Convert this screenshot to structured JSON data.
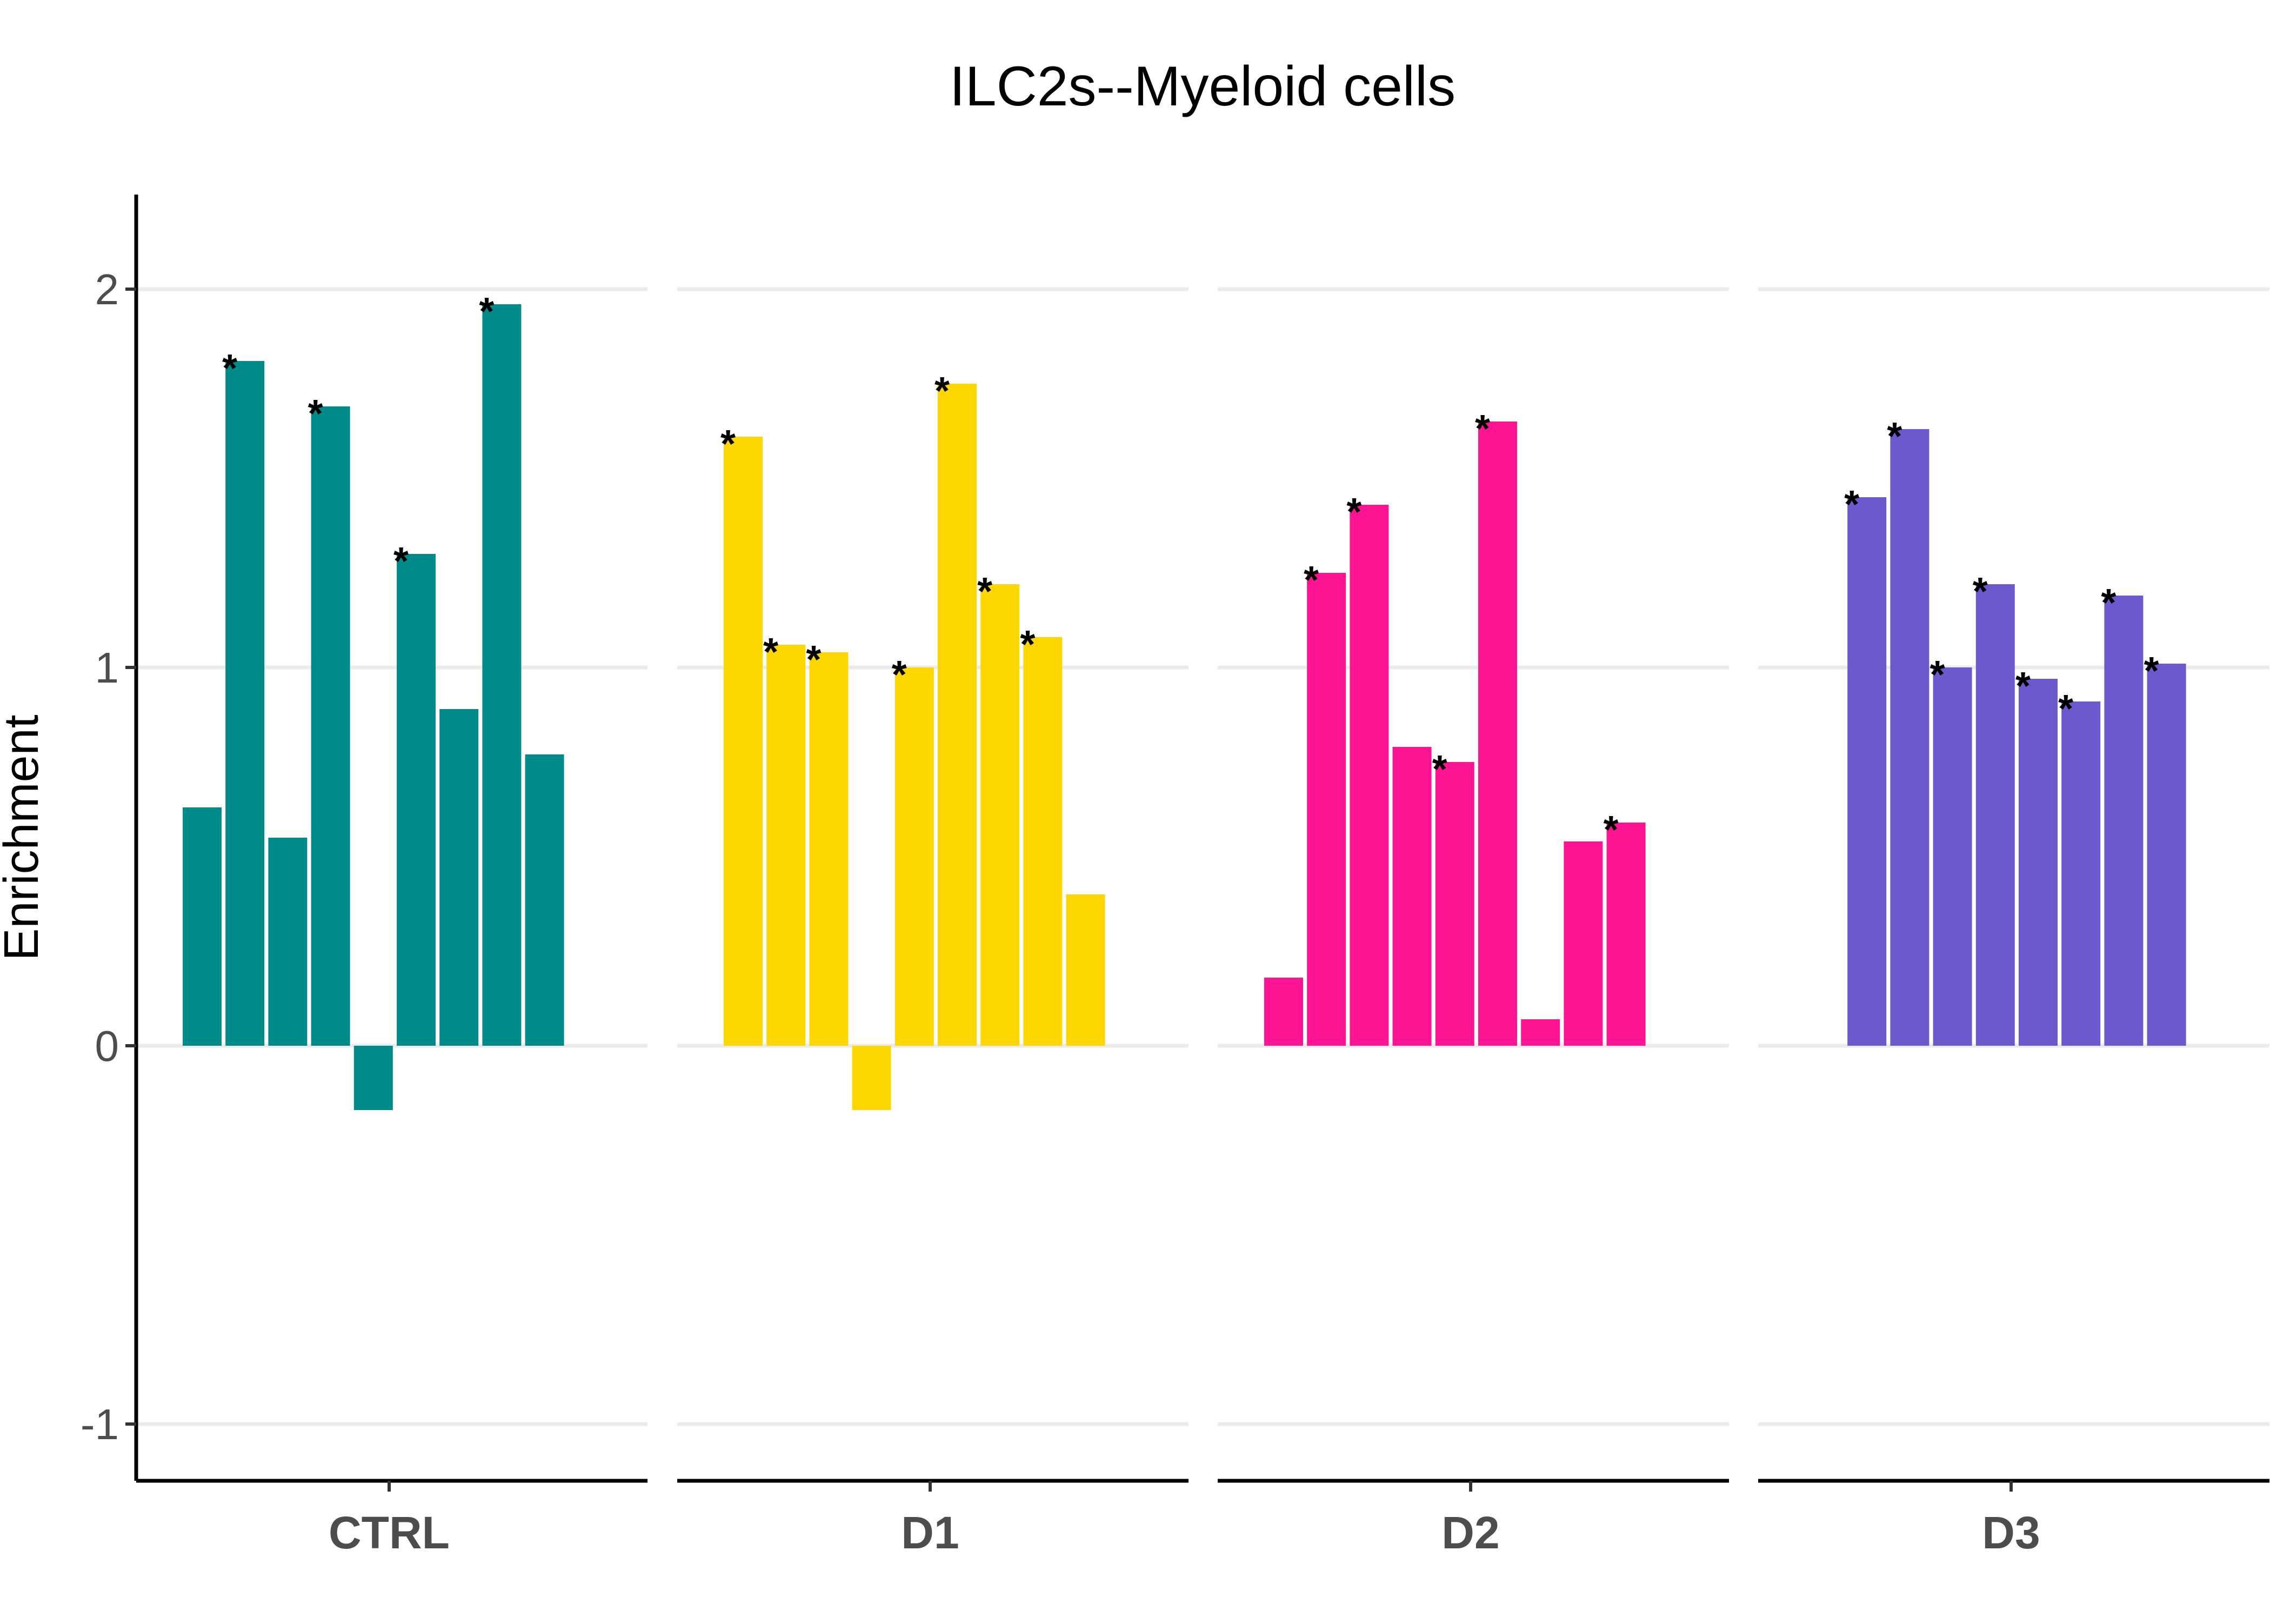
{
  "chart_data": {
    "type": "bar",
    "title": "ILC2s--Myeloid cells",
    "xlabel": "",
    "ylabel": "Enrichment",
    "ylim": [
      -1.15,
      2.25
    ],
    "yticks": [
      -1,
      0,
      1,
      2
    ],
    "grid": "horizontal major lines",
    "significance_marker": "*",
    "facets": [
      {
        "label": "CTRL",
        "color": "#008b8b",
        "values": [
          0.63,
          1.81,
          0.55,
          1.69,
          -0.17,
          1.3,
          0.89,
          1.96,
          0.77
        ],
        "significant": [
          false,
          true,
          false,
          true,
          false,
          true,
          false,
          true,
          false
        ]
      },
      {
        "label": "D1",
        "color": "#ffd700",
        "values": [
          1.61,
          1.06,
          1.04,
          -0.17,
          1.0,
          1.75,
          1.22,
          1.08,
          0.4
        ],
        "significant": [
          true,
          true,
          true,
          false,
          true,
          true,
          true,
          true,
          false
        ]
      },
      {
        "label": "D2",
        "color": "#ff1493",
        "values": [
          0.18,
          1.25,
          1.43,
          0.79,
          0.75,
          1.65,
          0.07,
          0.54,
          0.59
        ],
        "significant": [
          false,
          true,
          true,
          false,
          true,
          true,
          false,
          false,
          true
        ]
      },
      {
        "label": "D3",
        "color": "#6a5acd",
        "values": [
          null,
          1.45,
          1.63,
          1.0,
          1.22,
          0.97,
          0.91,
          1.19,
          1.01
        ],
        "significant": [
          false,
          true,
          true,
          true,
          true,
          true,
          true,
          true,
          true
        ]
      }
    ]
  }
}
